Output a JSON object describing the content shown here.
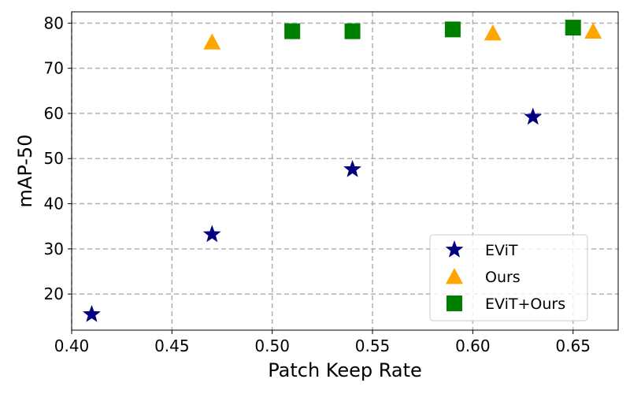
{
  "chart_data": {
    "type": "scatter",
    "xlabel": "Patch Keep Rate",
    "ylabel": "mAP-50",
    "xlim": [
      0.4,
      0.6725
    ],
    "ylim": [
      12,
      82.5
    ],
    "xticks": [
      "0.40",
      "0.45",
      "0.50",
      "0.55",
      "0.60",
      "0.65"
    ],
    "yticks": [
      "20",
      "30",
      "40",
      "50",
      "60",
      "70",
      "80"
    ],
    "grid": true,
    "legend_position": "lower-right",
    "series": [
      {
        "name": "EViT",
        "marker": "star",
        "color": "#000080",
        "points": [
          {
            "x": 0.41,
            "y": 15.5
          },
          {
            "x": 0.47,
            "y": 33.2
          },
          {
            "x": 0.54,
            "y": 47.6
          },
          {
            "x": 0.63,
            "y": 59.2
          }
        ]
      },
      {
        "name": "Ours",
        "marker": "triangle",
        "color": "#FFA500",
        "points": [
          {
            "x": 0.47,
            "y": 75.8
          },
          {
            "x": 0.61,
            "y": 77.8
          },
          {
            "x": 0.66,
            "y": 78.2
          }
        ]
      },
      {
        "name": "EViT+Ours",
        "marker": "square",
        "color": "#008000",
        "points": [
          {
            "x": 0.51,
            "y": 78.2
          },
          {
            "x": 0.54,
            "y": 78.2
          },
          {
            "x": 0.59,
            "y": 78.6
          },
          {
            "x": 0.65,
            "y": 79.0
          }
        ]
      }
    ]
  }
}
